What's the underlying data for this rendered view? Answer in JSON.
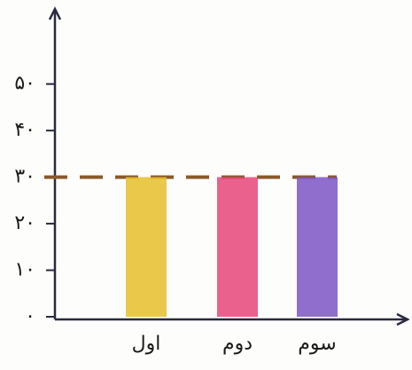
{
  "chart_data": {
    "type": "bar",
    "categories": [
      "اول",
      "دوم",
      "سوم"
    ],
    "series": [
      {
        "values": [
          30,
          30,
          30
        ],
        "colors": [
          "#e6c02a",
          "#e8457a",
          "#7d55c4"
        ]
      }
    ],
    "ylim": [
      0,
      65
    ],
    "yticks": [
      {
        "value": 0,
        "label": "۰"
      },
      {
        "value": 10,
        "label": "۱۰"
      },
      {
        "value": 20,
        "label": "۲۰"
      },
      {
        "value": 30,
        "label": "۳۰"
      },
      {
        "value": 40,
        "label": "۴۰"
      },
      {
        "value": 50,
        "label": "۵۰"
      }
    ],
    "dashed_line": 30,
    "dashed_line_color": "#8a5a2a"
  }
}
